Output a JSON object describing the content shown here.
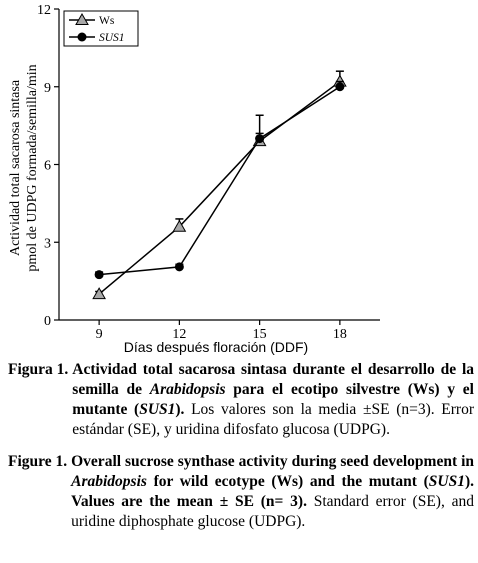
{
  "chart_data": {
    "type": "line",
    "x": [
      9,
      12,
      15,
      18
    ],
    "xlabel": "Días después floración (DDF)",
    "ylabel": [
      "Actividad total sacarosa sintasa",
      "pmol de UDPG formada/semilla/min"
    ],
    "ylim": [
      0,
      12
    ],
    "yticks": [
      0,
      3,
      6,
      9,
      12
    ],
    "xticks": [
      9,
      12,
      15,
      18
    ],
    "grid": false,
    "legend_position": "top-left",
    "series": [
      {
        "name": "Ws",
        "marker": "triangle",
        "color": "#a8a8a8",
        "values": [
          1.0,
          3.6,
          6.9,
          9.2
        ],
        "err": [
          0.1,
          0.3,
          0.3,
          0.4
        ]
      },
      {
        "name": "SUS1",
        "marker": "circle",
        "color": "#000000",
        "values": [
          1.75,
          2.05,
          7.0,
          9.0
        ],
        "err": [
          0.1,
          0.1,
          0.9,
          0.2
        ]
      }
    ]
  },
  "caption_es": {
    "lead": "Figura 1.",
    "b1": "Actividad total sacarosa sintasa durante el desarrollo de la semilla de ",
    "i1": "Arabidopsis",
    "b2": " para el ecotipo silvestre (Ws) y el mutante (",
    "i2": "SUS1",
    "b3": ").",
    "rest": " Los valores son la media ±SE (n=3). Error estándar (SE), y uridina difosfato glucosa (UDPG)."
  },
  "caption_en": {
    "lead": "Figure 1.",
    "b1": "Overall sucrose synthase activity during seed development in ",
    "i1": "Arabidopsis",
    "b2": " for wild ecotype (Ws) and the mutant (",
    "i2": "SUS1",
    "b3": "). Values are the mean ± SE (n= 3).",
    "rest": " Standard error (SE), and uridine diphosphate glucose (UDPG)."
  }
}
